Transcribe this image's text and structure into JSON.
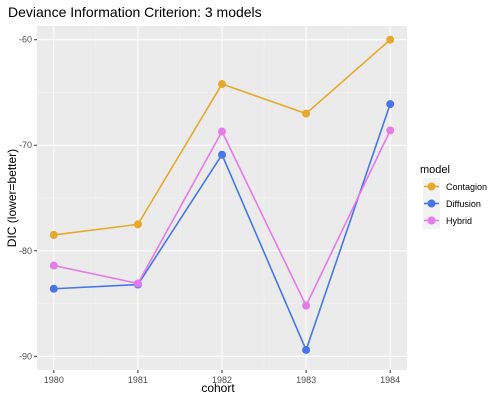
{
  "chart_data": {
    "type": "line",
    "title": "Deviance Information Criterion: 3 models",
    "xlabel": "cohort",
    "ylabel": "DIC (lower=better)",
    "x": [
      "1980",
      "1981",
      "1982",
      "1983",
      "1984"
    ],
    "xlim": [
      1979.8,
      1984.2
    ],
    "ylim": [
      -91.3,
      -58.7
    ],
    "yticks": [
      -90,
      -80,
      -70,
      -60
    ],
    "grid": true,
    "legend": {
      "title": "model",
      "position": "right"
    },
    "series": [
      {
        "name": "Contagion",
        "color": "#E6A92B",
        "values": [
          -78.5,
          -77.5,
          -64.2,
          -67.0,
          -60.0
        ]
      },
      {
        "name": "Diffusion",
        "color": "#4876E8",
        "values": [
          -83.6,
          -83.2,
          -70.9,
          -89.4,
          -66.1
        ]
      },
      {
        "name": "Hybrid",
        "color": "#E57BE9",
        "values": [
          -81.4,
          -83.1,
          -68.7,
          -85.2,
          -68.6
        ]
      }
    ],
    "colors": {
      "panel_bg": "#EBEBEB",
      "grid_major": "#FFFFFF",
      "grid_minor": "#F4F4F4",
      "tick_text": "#4D4D4D"
    }
  }
}
